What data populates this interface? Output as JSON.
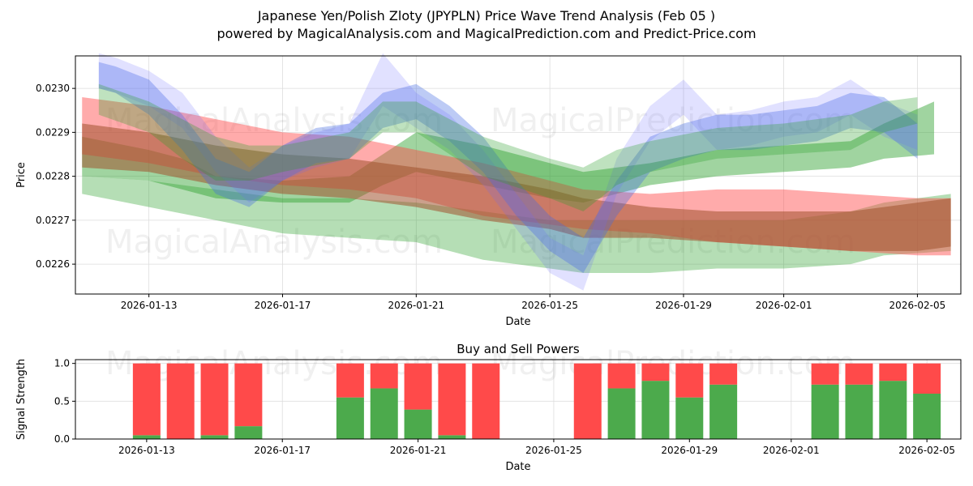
{
  "chart_data": [
    {
      "type": "area",
      "title": "Japanese Yen/Polish Zloty (JPYPLN) Price Wave Trend Analysis (Feb 05 )",
      "subtitle": "powered by MagicalAnalysis.com and MagicalPrediction.com and Predict-Price.com",
      "xlabel": "Date",
      "ylabel": "Price",
      "x_unit": "day-of-year 2026 (Jan 13 = 13, Feb 1 = 32)",
      "xlim": [
        10.8,
        37.3
      ],
      "ylim": [
        0.022532,
        0.023074
      ],
      "grid": true,
      "xticks": [
        {
          "day": 13,
          "label": "2026-01-13"
        },
        {
          "day": 17,
          "label": "2026-01-17"
        },
        {
          "day": 21,
          "label": "2026-01-21"
        },
        {
          "day": 25,
          "label": "2026-01-25"
        },
        {
          "day": 29,
          "label": "2026-01-29"
        },
        {
          "day": 32,
          "label": "2026-02-01"
        },
        {
          "day": 36,
          "label": "2026-02-05"
        }
      ],
      "yticks": [
        {
          "v": 0.0226,
          "label": "0.0226"
        },
        {
          "v": 0.0227,
          "label": "0.0227"
        },
        {
          "v": 0.0228,
          "label": "0.0228"
        },
        {
          "v": 0.0229,
          "label": "0.0229"
        },
        {
          "v": 0.023,
          "label": "0.0230"
        }
      ],
      "bands": [
        {
          "name": "green-wide",
          "color": "#2ca02c",
          "opacity": 0.35,
          "x": [
            11,
            13,
            15,
            17,
            19,
            21,
            23,
            25,
            26,
            28,
            30,
            32,
            34,
            35,
            37
          ],
          "upper": [
            0.0228,
            0.02279,
            0.02277,
            0.02275,
            0.02275,
            0.02274,
            0.02272,
            0.0227,
            0.0227,
            0.0227,
            0.0227,
            0.0227,
            0.02272,
            0.02274,
            0.02276
          ],
          "lower": [
            0.02276,
            0.02273,
            0.0227,
            0.02267,
            0.02266,
            0.02265,
            0.02261,
            0.02259,
            0.02258,
            0.02258,
            0.02259,
            0.02259,
            0.0226,
            0.02262,
            0.02263
          ]
        },
        {
          "name": "green-mid",
          "color": "#2ca02c",
          "opacity": 0.45,
          "x": [
            11,
            13,
            14,
            15,
            17,
            19,
            20,
            21,
            23,
            25,
            26,
            28,
            30,
            32,
            34,
            35,
            36.5
          ],
          "upper": [
            0.02289,
            0.02286,
            0.02284,
            0.0228,
            0.02279,
            0.0228,
            0.02285,
            0.0229,
            0.02287,
            0.02283,
            0.02281,
            0.02283,
            0.02286,
            0.02287,
            0.02288,
            0.02292,
            0.02297
          ],
          "lower": [
            0.0228,
            0.02279,
            0.02277,
            0.02275,
            0.02274,
            0.02274,
            0.02278,
            0.02281,
            0.02278,
            0.02275,
            0.02274,
            0.02278,
            0.0228,
            0.02281,
            0.02282,
            0.02284,
            0.02285
          ]
        },
        {
          "name": "red",
          "color": "#ff4444",
          "opacity": 0.45,
          "x": [
            11,
            13,
            15,
            17,
            19,
            21,
            23,
            25,
            26,
            28,
            30,
            32,
            34,
            36,
            37
          ],
          "upper": [
            0.02298,
            0.02296,
            0.02293,
            0.0229,
            0.02289,
            0.02286,
            0.02283,
            0.02279,
            0.02277,
            0.02276,
            0.02277,
            0.02277,
            0.02276,
            0.02275,
            0.02275
          ],
          "lower": [
            0.02285,
            0.02283,
            0.0228,
            0.02278,
            0.02277,
            0.02275,
            0.02271,
            0.02269,
            0.02268,
            0.02267,
            0.02265,
            0.02264,
            0.02263,
            0.02262,
            0.02262
          ]
        },
        {
          "name": "brown",
          "color": "#a0522d",
          "opacity": 0.55,
          "x": [
            11,
            13,
            15,
            17,
            19,
            21,
            23,
            25,
            26,
            28,
            30,
            32,
            34,
            36,
            37
          ],
          "upper": [
            0.02292,
            0.0229,
            0.02287,
            0.02285,
            0.02284,
            0.02282,
            0.0228,
            0.02277,
            0.02275,
            0.02273,
            0.02272,
            0.02272,
            0.02272,
            0.02274,
            0.02275
          ],
          "lower": [
            0.02282,
            0.02281,
            0.02278,
            0.02276,
            0.02275,
            0.02273,
            0.0227,
            0.02268,
            0.02266,
            0.02266,
            0.02265,
            0.02264,
            0.02263,
            0.02263,
            0.02264
          ]
        },
        {
          "name": "blue-1",
          "color": "#4169e1",
          "opacity": 0.35,
          "x": [
            11.5,
            12,
            13,
            14,
            15,
            16,
            17,
            18,
            19,
            20,
            21,
            22,
            23,
            24,
            25,
            26,
            27,
            28,
            29,
            30,
            31,
            32,
            33,
            34,
            35,
            36
          ],
          "upper": [
            0.02306,
            0.02305,
            0.02302,
            0.02294,
            0.02284,
            0.02281,
            0.02287,
            0.02291,
            0.02292,
            0.02299,
            0.02301,
            0.02296,
            0.02289,
            0.02279,
            0.02271,
            0.02266,
            0.02279,
            0.02289,
            0.02292,
            0.02294,
            0.02294,
            0.02295,
            0.02296,
            0.02299,
            0.02298,
            0.02292
          ],
          "lower": [
            0.023,
            0.02299,
            0.02294,
            0.02286,
            0.02276,
            0.02273,
            0.02279,
            0.02283,
            0.02284,
            0.02291,
            0.02293,
            0.02288,
            0.02281,
            0.02271,
            0.02263,
            0.02258,
            0.02271,
            0.02281,
            0.02284,
            0.02286,
            0.02286,
            0.02287,
            0.02288,
            0.02291,
            0.0229,
            0.02284
          ]
        },
        {
          "name": "blue-2",
          "color": "#6a6aff",
          "opacity": 0.2,
          "x": [
            11.5,
            12,
            13,
            14,
            15,
            16,
            17,
            18,
            19,
            20,
            21,
            22,
            23,
            24,
            25,
            26,
            27,
            28,
            29,
            30,
            31,
            32,
            33,
            34,
            35,
            36
          ],
          "upper": [
            0.02308,
            0.02307,
            0.02304,
            0.02299,
            0.02289,
            0.02282,
            0.02287,
            0.0229,
            0.02292,
            0.02308,
            0.02299,
            0.02294,
            0.02286,
            0.02276,
            0.02266,
            0.02262,
            0.02284,
            0.02296,
            0.02302,
            0.02294,
            0.02295,
            0.02297,
            0.02298,
            0.02302,
            0.02297,
            0.02294
          ],
          "lower": [
            0.023,
            0.02299,
            0.02296,
            0.02291,
            0.02281,
            0.02274,
            0.02279,
            0.02282,
            0.02284,
            0.02296,
            0.02291,
            0.02286,
            0.02278,
            0.02268,
            0.02258,
            0.02254,
            0.02276,
            0.02288,
            0.02294,
            0.02286,
            0.02287,
            0.02289,
            0.0229,
            0.02294,
            0.02289,
            0.02286
          ]
        },
        {
          "name": "green-narrow",
          "color": "#2ca02c",
          "opacity": 0.3,
          "x": [
            11.5,
            13,
            14,
            15,
            16,
            17,
            19,
            20,
            21,
            22,
            23,
            25,
            26,
            27,
            28,
            30,
            32,
            34,
            35,
            36
          ],
          "upper": [
            0.02301,
            0.02297,
            0.02293,
            0.02289,
            0.02287,
            0.02287,
            0.0229,
            0.02297,
            0.02297,
            0.02293,
            0.02289,
            0.02284,
            0.02282,
            0.02286,
            0.02288,
            0.02291,
            0.02292,
            0.02294,
            0.02297,
            0.02298
          ],
          "lower": [
            0.02294,
            0.0229,
            0.02284,
            0.02279,
            0.02279,
            0.02281,
            0.02284,
            0.0229,
            0.0229,
            0.02285,
            0.0228,
            0.02275,
            0.02272,
            0.02278,
            0.02281,
            0.02284,
            0.02285,
            0.02286,
            0.0229,
            0.02292
          ]
        }
      ],
      "watermarks": [
        "MagicalAnalysis.com",
        "MagicalPrediction.com"
      ]
    },
    {
      "type": "bar",
      "title": "Buy and Sell Powers",
      "xlabel": "Date",
      "ylabel": "Signal Strength",
      "ylim": [
        0,
        1.05
      ],
      "xlim": [
        10.9,
        37.0
      ],
      "grid": true,
      "xticks": [
        {
          "day": 13,
          "label": "2026-01-13"
        },
        {
          "day": 17,
          "label": "2026-01-17"
        },
        {
          "day": 21,
          "label": "2026-01-21"
        },
        {
          "day": 25,
          "label": "2026-01-25"
        },
        {
          "day": 29,
          "label": "2026-01-29"
        },
        {
          "day": 32,
          "label": "2026-02-01"
        },
        {
          "day": 36,
          "label": "2026-02-05"
        }
      ],
      "yticks": [
        {
          "v": 0,
          "label": "0.0"
        },
        {
          "v": 0.5,
          "label": "0.5"
        },
        {
          "v": 1.0,
          "label": "1.0"
        }
      ],
      "days": [
        13,
        14,
        15,
        16,
        19,
        20,
        21,
        22,
        23,
        26,
        27,
        28,
        29,
        30,
        33,
        34,
        35,
        36
      ],
      "series": [
        {
          "name": "Buy",
          "color": "#4caa4c",
          "values": [
            0.05,
            0.0,
            0.05,
            0.17,
            0.55,
            0.67,
            0.39,
            0.05,
            0.0,
            0.0,
            0.67,
            0.77,
            0.55,
            0.72,
            0.72,
            0.72,
            0.77,
            0.6
          ]
        },
        {
          "name": "Sell",
          "color": "#ff4a4a",
          "values": [
            0.95,
            1.0,
            0.95,
            0.83,
            0.45,
            0.33,
            0.61,
            0.95,
            1.0,
            1.0,
            0.33,
            0.23,
            0.45,
            0.28,
            0.28,
            0.28,
            0.23,
            0.4
          ]
        }
      ],
      "watermarks": [
        "MagicalAnalysis.com",
        "MagicalPrediction.com"
      ]
    }
  ]
}
